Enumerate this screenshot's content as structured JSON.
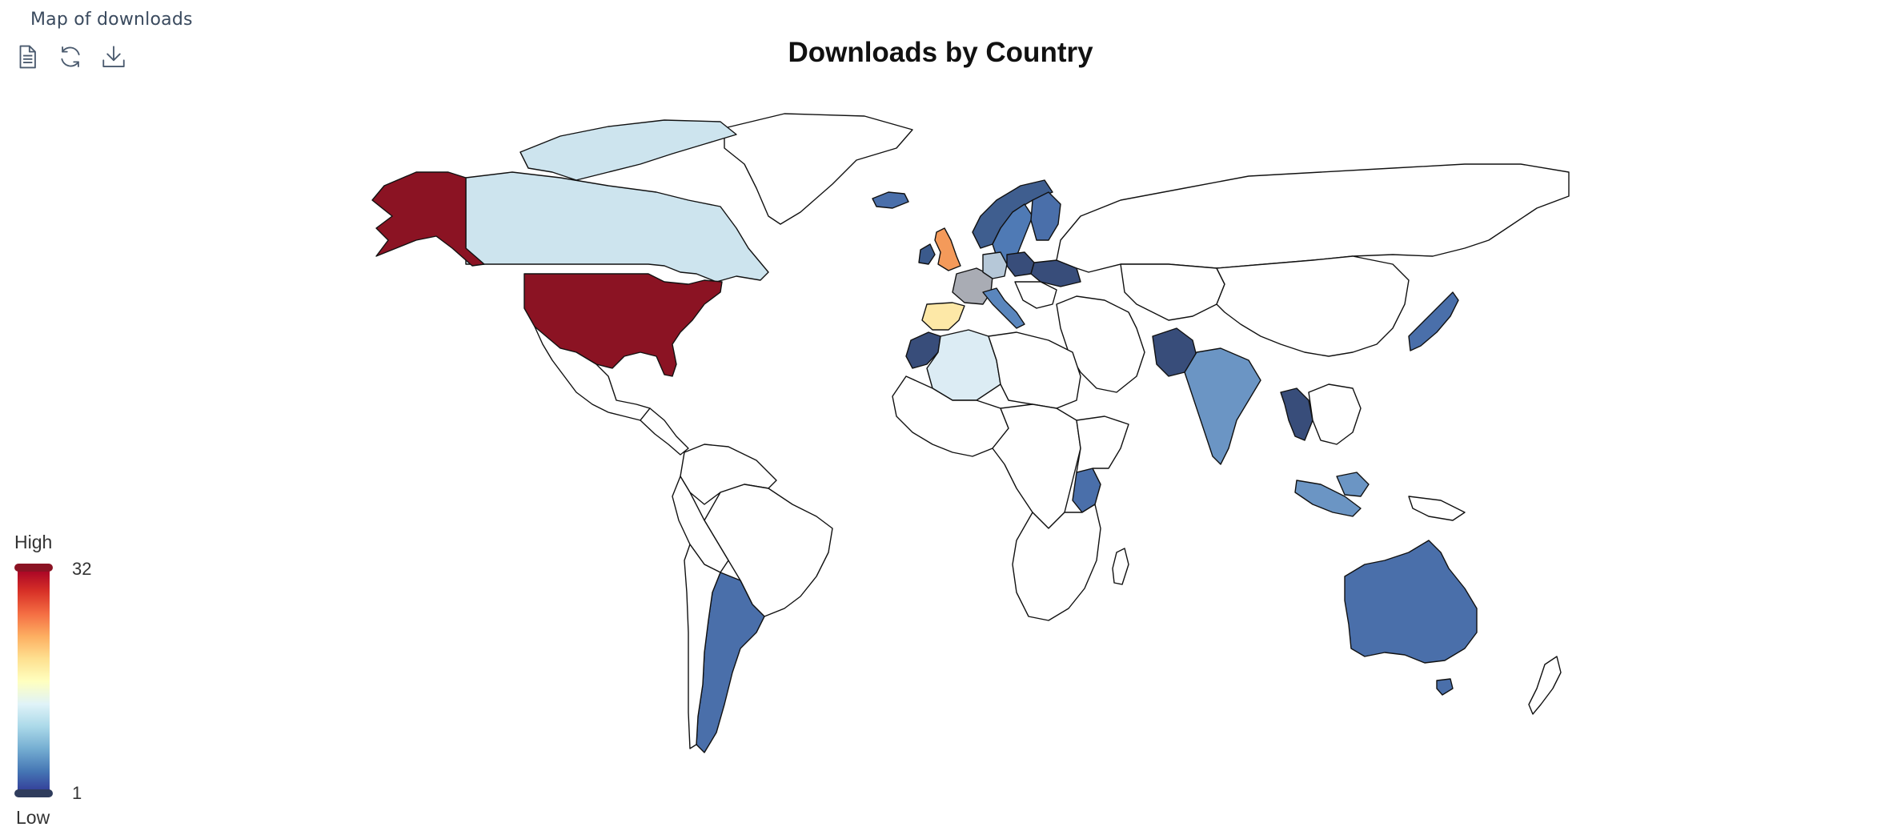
{
  "panel": {
    "title": "Map of downloads"
  },
  "toolbar": {
    "items": [
      {
        "name": "data-view-button",
        "icon": "document-icon"
      },
      {
        "name": "restore-button",
        "icon": "refresh-icon"
      },
      {
        "name": "save-image-button",
        "icon": "download-icon"
      }
    ]
  },
  "chart": {
    "title": "Downloads by Country"
  },
  "legend": {
    "high_label": "High",
    "low_label": "Low",
    "max": "32",
    "min": "1",
    "colors": [
      "#313695",
      "#4575b4",
      "#74add1",
      "#abd9e9",
      "#e0f3f8",
      "#ffffbf",
      "#fee090",
      "#fdae61",
      "#f46d43",
      "#d73027",
      "#a50026"
    ],
    "handle_top_color": "#8b1323",
    "handle_bottom_color": "#2f3c5c"
  },
  "chart_data": {
    "type": "map",
    "value_range": [
      1,
      32
    ],
    "colors": {
      "usa": "#8b1323",
      "canada": "#cde4ee",
      "argentina": "#4a6faa",
      "australia": "#4a6faa",
      "uk": "#f49a5a",
      "ireland": "#3b5a8c",
      "spain": "#fde8a7",
      "france": "#a9acb4",
      "germany": "#b6c8d8",
      "italy": "#5a86bd",
      "poland": "#384d7a",
      "ukraine": "#384d7a",
      "sweden": "#4f7ab5",
      "norway": "#3f5e8f",
      "finland": "#4a6faa",
      "iceland": "#4a6faa",
      "algeria": "#dcecf4",
      "morocco": "#384d7a",
      "pakistan": "#384d7a",
      "india": "#6b95c4",
      "thailand": "#384d7a",
      "japan": "#4a6faa",
      "indonesia": "#6b95c4",
      "kenya": "#4a6faa",
      "default": "#ffffff"
    }
  }
}
